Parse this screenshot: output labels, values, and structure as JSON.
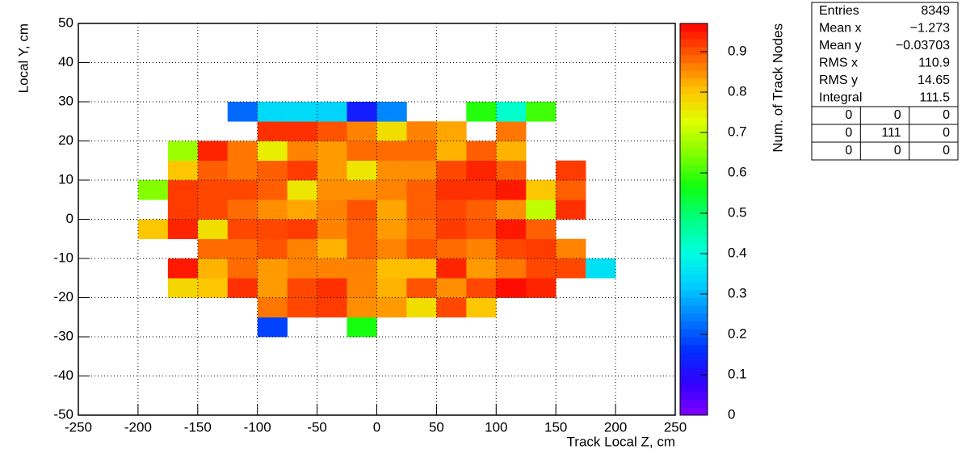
{
  "chart_data": {
    "type": "heatmap",
    "x_label": "Track Local Z, cm",
    "y_label": "Local Y, cm",
    "z_label": "Num. of Track Nodes",
    "xlim": [
      -250,
      250
    ],
    "xticks": [
      -250,
      -200,
      -150,
      -100,
      -50,
      0,
      50,
      100,
      150,
      200,
      250
    ],
    "ylim": [
      -50,
      50
    ],
    "yticks": [
      -50,
      -40,
      -30,
      -20,
      -10,
      0,
      10,
      20,
      30,
      40,
      50
    ],
    "zlim": [
      0,
      0.97
    ],
    "zticks": [
      0,
      0.1,
      0.2,
      0.3,
      0.4,
      0.5,
      0.6,
      0.7,
      0.8,
      0.9
    ],
    "grid": true,
    "palette": [
      "#8000ff",
      "#3000ff",
      "#0030ff",
      "#0080ff",
      "#00d0ff",
      "#00ffe0",
      "#00ff80",
      "#10ff10",
      "#80ff00",
      "#e0ff00",
      "#ffc000",
      "#ff6000",
      "#ff0000"
    ],
    "xbins": [
      -200,
      -175,
      -150,
      -125,
      -100,
      -75,
      -50,
      -25,
      0,
      25,
      50,
      75,
      100,
      125,
      150,
      175,
      200
    ],
    "ybins": [
      -30,
      -25,
      -20,
      -15,
      -10,
      -5,
      0,
      5,
      10,
      15,
      20,
      25,
      30
    ],
    "z": [
      [
        null,
        null,
        null,
        null,
        0.18,
        null,
        null,
        0.57,
        null,
        null,
        null,
        null,
        null,
        null,
        null,
        null
      ],
      [
        null,
        null,
        null,
        null,
        0.87,
        0.91,
        0.92,
        0.85,
        0.84,
        0.77,
        0.91,
        0.8,
        null,
        null,
        null,
        null
      ],
      [
        null,
        0.78,
        0.8,
        0.93,
        0.84,
        0.91,
        0.93,
        0.86,
        0.82,
        0.9,
        0.85,
        0.91,
        0.96,
        0.94,
        null,
        null
      ],
      [
        null,
        0.95,
        0.82,
        0.88,
        0.84,
        0.86,
        0.86,
        0.86,
        0.81,
        0.81,
        0.94,
        0.84,
        0.87,
        0.91,
        0.91,
        0.35
      ],
      [
        null,
        null,
        0.88,
        0.88,
        0.9,
        0.86,
        0.82,
        0.89,
        0.86,
        0.9,
        0.88,
        0.86,
        0.91,
        0.92,
        0.86,
        null
      ],
      [
        0.8,
        0.94,
        0.77,
        0.91,
        0.91,
        0.92,
        0.86,
        0.89,
        0.84,
        0.88,
        0.92,
        0.9,
        0.95,
        0.89,
        null,
        null
      ],
      [
        null,
        0.92,
        0.91,
        0.88,
        0.85,
        0.83,
        0.86,
        0.9,
        0.83,
        0.89,
        0.91,
        0.89,
        0.85,
        0.7,
        0.93,
        null
      ],
      [
        0.65,
        0.92,
        0.91,
        0.91,
        0.89,
        0.76,
        0.85,
        0.85,
        0.86,
        0.89,
        0.93,
        0.93,
        0.95,
        0.8,
        0.89,
        null
      ],
      [
        null,
        0.8,
        0.89,
        0.87,
        0.89,
        0.92,
        0.84,
        0.76,
        0.85,
        0.85,
        0.91,
        0.94,
        0.89,
        null,
        0.92,
        null
      ],
      [
        null,
        0.67,
        0.94,
        0.87,
        0.75,
        0.86,
        0.84,
        0.88,
        0.88,
        0.88,
        0.82,
        0.89,
        0.82,
        null,
        null,
        null
      ],
      [
        null,
        null,
        null,
        null,
        0.93,
        0.93,
        0.9,
        0.86,
        0.77,
        0.86,
        0.83,
        null,
        0.87,
        null,
        null,
        null
      ],
      [
        null,
        null,
        null,
        0.22,
        0.34,
        0.34,
        0.33,
        0.13,
        0.25,
        null,
        null,
        0.58,
        0.42,
        0.6,
        null,
        null
      ]
    ],
    "stats": {
      "rows": [
        [
          "Entries",
          "8349"
        ],
        [
          "Mean x",
          "−1.273"
        ],
        [
          "Mean y",
          "−0.03703"
        ],
        [
          "RMS x",
          "110.9"
        ],
        [
          "RMS y",
          "14.65"
        ],
        [
          "Integral",
          "111.5"
        ]
      ],
      "grid": [
        [
          "0",
          "0",
          "0"
        ],
        [
          "0",
          "111",
          "0"
        ],
        [
          "0",
          "0",
          "0"
        ]
      ]
    }
  }
}
